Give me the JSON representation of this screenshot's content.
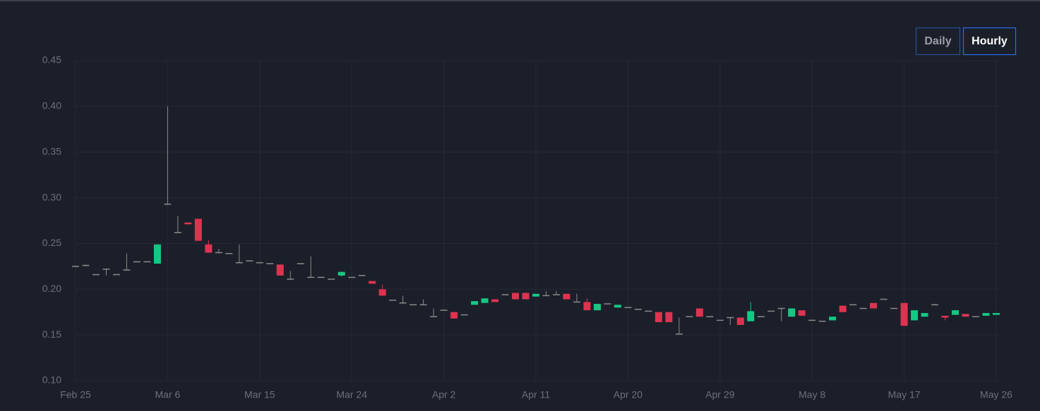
{
  "chart_data": {
    "type": "candlestick",
    "buttons": [
      "Daily",
      "Hourly"
    ],
    "active_button": 1,
    "x": [
      "Feb 25",
      "Feb 26",
      "Feb 27",
      "Feb 28",
      "Mar 1",
      "Mar 2",
      "Mar 3",
      "Mar 4",
      "Mar 5",
      "Mar 6",
      "Mar 7",
      "Mar 8",
      "Mar 9",
      "Mar 10",
      "Mar 11",
      "Mar 12",
      "Mar 13",
      "Mar 14",
      "Mar 15",
      "Mar 16",
      "Mar 17",
      "Mar 18",
      "Mar 19",
      "Mar 20",
      "Mar 21",
      "Mar 22",
      "Mar 23",
      "Mar 24",
      "Mar 25",
      "Mar 26",
      "Mar 27",
      "Mar 28",
      "Mar 29",
      "Mar 30",
      "Mar 31",
      "Apr 1",
      "Apr 2",
      "Apr 3",
      "Apr 4",
      "Apr 5",
      "Apr 6",
      "Apr 7",
      "Apr 8",
      "Apr 9",
      "Apr 10",
      "Apr 11",
      "Apr 12",
      "Apr 13",
      "Apr 14",
      "Apr 15",
      "Apr 16",
      "Apr 17",
      "Apr 18",
      "Apr 19",
      "Apr 20",
      "Apr 21",
      "Apr 22",
      "Apr 23",
      "Apr 24",
      "Apr 25",
      "Apr 26",
      "Apr 27",
      "Apr 28",
      "Apr 29",
      "Apr 30",
      "May 1",
      "May 2",
      "May 3",
      "May 4",
      "May 5",
      "May 6",
      "May 7",
      "May 8",
      "May 9",
      "May 10",
      "May 11",
      "May 12",
      "May 13",
      "May 14",
      "May 15",
      "May 16",
      "May 17",
      "May 18",
      "May 19",
      "May 20",
      "May 21",
      "May 22",
      "May 23",
      "May 24",
      "May 25",
      "May 26"
    ],
    "open": [
      0.225,
      0.226,
      0.216,
      0.222,
      0.216,
      0.221,
      0.23,
      0.23,
      0.228,
      0.293,
      0.262,
      0.273,
      0.277,
      0.249,
      0.24,
      0.239,
      0.229,
      0.231,
      0.229,
      0.228,
      0.227,
      0.211,
      0.228,
      0.213,
      0.213,
      0.211,
      0.215,
      0.213,
      0.215,
      0.209,
      0.2,
      0.188,
      0.185,
      0.183,
      0.183,
      0.17,
      0.177,
      0.175,
      0.172,
      0.183,
      0.185,
      0.189,
      0.194,
      0.196,
      0.196,
      0.192,
      0.193,
      0.194,
      0.195,
      0.186,
      0.186,
      0.177,
      0.184,
      0.18,
      0.18,
      0.178,
      0.176,
      0.175,
      0.175,
      0.151,
      0.17,
      0.179,
      0.17,
      0.166,
      0.169,
      0.169,
      0.165,
      0.17,
      0.176,
      0.179,
      0.17,
      0.177,
      0.166,
      0.165,
      0.166,
      0.182,
      0.183,
      0.179,
      0.185,
      0.189,
      0.179,
      0.185,
      0.166,
      0.17,
      0.183,
      0.171,
      0.172,
      0.173,
      0.17,
      0.171,
      0.172
    ],
    "high": [
      0.226,
      0.227,
      0.216,
      0.222,
      0.216,
      0.239,
      0.23,
      0.23,
      0.249,
      0.4,
      0.28,
      0.273,
      0.277,
      0.254,
      0.244,
      0.239,
      0.249,
      0.231,
      0.229,
      0.228,
      0.227,
      0.22,
      0.228,
      0.236,
      0.213,
      0.211,
      0.219,
      0.213,
      0.215,
      0.209,
      0.205,
      0.188,
      0.193,
      0.183,
      0.189,
      0.179,
      0.177,
      0.175,
      0.172,
      0.187,
      0.19,
      0.189,
      0.194,
      0.196,
      0.196,
      0.195,
      0.198,
      0.198,
      0.195,
      0.195,
      0.19,
      0.184,
      0.184,
      0.183,
      0.18,
      0.178,
      0.176,
      0.175,
      0.175,
      0.169,
      0.17,
      0.179,
      0.17,
      0.166,
      0.169,
      0.169,
      0.186,
      0.17,
      0.176,
      0.179,
      0.179,
      0.177,
      0.166,
      0.165,
      0.17,
      0.182,
      0.183,
      0.179,
      0.185,
      0.189,
      0.179,
      0.185,
      0.177,
      0.174,
      0.184,
      0.171,
      0.177,
      0.173,
      0.17,
      0.174,
      0.174
    ],
    "low": [
      0.225,
      0.225,
      0.216,
      0.215,
      0.216,
      0.221,
      0.23,
      0.23,
      0.228,
      0.293,
      0.262,
      0.271,
      0.253,
      0.24,
      0.24,
      0.239,
      0.229,
      0.231,
      0.229,
      0.228,
      0.215,
      0.211,
      0.228,
      0.213,
      0.213,
      0.211,
      0.214,
      0.213,
      0.215,
      0.206,
      0.193,
      0.188,
      0.185,
      0.183,
      0.183,
      0.17,
      0.177,
      0.168,
      0.172,
      0.183,
      0.185,
      0.186,
      0.194,
      0.189,
      0.189,
      0.192,
      0.193,
      0.194,
      0.189,
      0.186,
      0.177,
      0.177,
      0.184,
      0.18,
      0.18,
      0.178,
      0.176,
      0.164,
      0.164,
      0.151,
      0.17,
      0.17,
      0.17,
      0.166,
      0.161,
      0.161,
      0.165,
      0.17,
      0.176,
      0.165,
      0.17,
      0.171,
      0.166,
      0.165,
      0.166,
      0.175,
      0.183,
      0.179,
      0.179,
      0.189,
      0.179,
      0.16,
      0.166,
      0.17,
      0.183,
      0.166,
      0.172,
      0.17,
      0.17,
      0.171,
      0.172
    ],
    "close": [
      0.225,
      0.226,
      0.216,
      0.222,
      0.216,
      0.221,
      0.23,
      0.23,
      0.249,
      0.293,
      0.262,
      0.271,
      0.253,
      0.24,
      0.24,
      0.239,
      0.229,
      0.231,
      0.229,
      0.228,
      0.215,
      0.211,
      0.228,
      0.213,
      0.213,
      0.211,
      0.219,
      0.213,
      0.215,
      0.206,
      0.193,
      0.188,
      0.185,
      0.183,
      0.183,
      0.17,
      0.177,
      0.168,
      0.172,
      0.187,
      0.19,
      0.186,
      0.194,
      0.189,
      0.189,
      0.195,
      0.193,
      0.194,
      0.189,
      0.186,
      0.177,
      0.184,
      0.184,
      0.183,
      0.18,
      0.178,
      0.176,
      0.164,
      0.164,
      0.151,
      0.17,
      0.17,
      0.17,
      0.166,
      0.169,
      0.161,
      0.176,
      0.17,
      0.176,
      0.179,
      0.179,
      0.171,
      0.166,
      0.165,
      0.17,
      0.175,
      0.183,
      0.179,
      0.179,
      0.189,
      0.179,
      0.16,
      0.177,
      0.174,
      0.183,
      0.169,
      0.177,
      0.17,
      0.17,
      0.174,
      0.174
    ],
    "up_color": "#16c784",
    "down_color": "#dc3450",
    "flat_color": "#8a8a8a",
    "ylim": [
      0.1,
      0.45
    ],
    "yticks": [
      {
        "value": 0.1,
        "label": "0.10"
      },
      0.15,
      {
        "value": 0.2,
        "label": "0.20"
      },
      0.25,
      {
        "value": 0.3,
        "label": "0.30"
      },
      0.35,
      {
        "value": 0.4,
        "label": "0.40"
      },
      0.45
    ],
    "xticks": [
      "Feb 25",
      "Mar 6",
      "Mar 15",
      "Mar 24",
      "Apr 2",
      "Apr 11",
      "Apr 20",
      "Apr 29",
      "May 8",
      "May 17",
      "May 26"
    ],
    "grid": true
  }
}
